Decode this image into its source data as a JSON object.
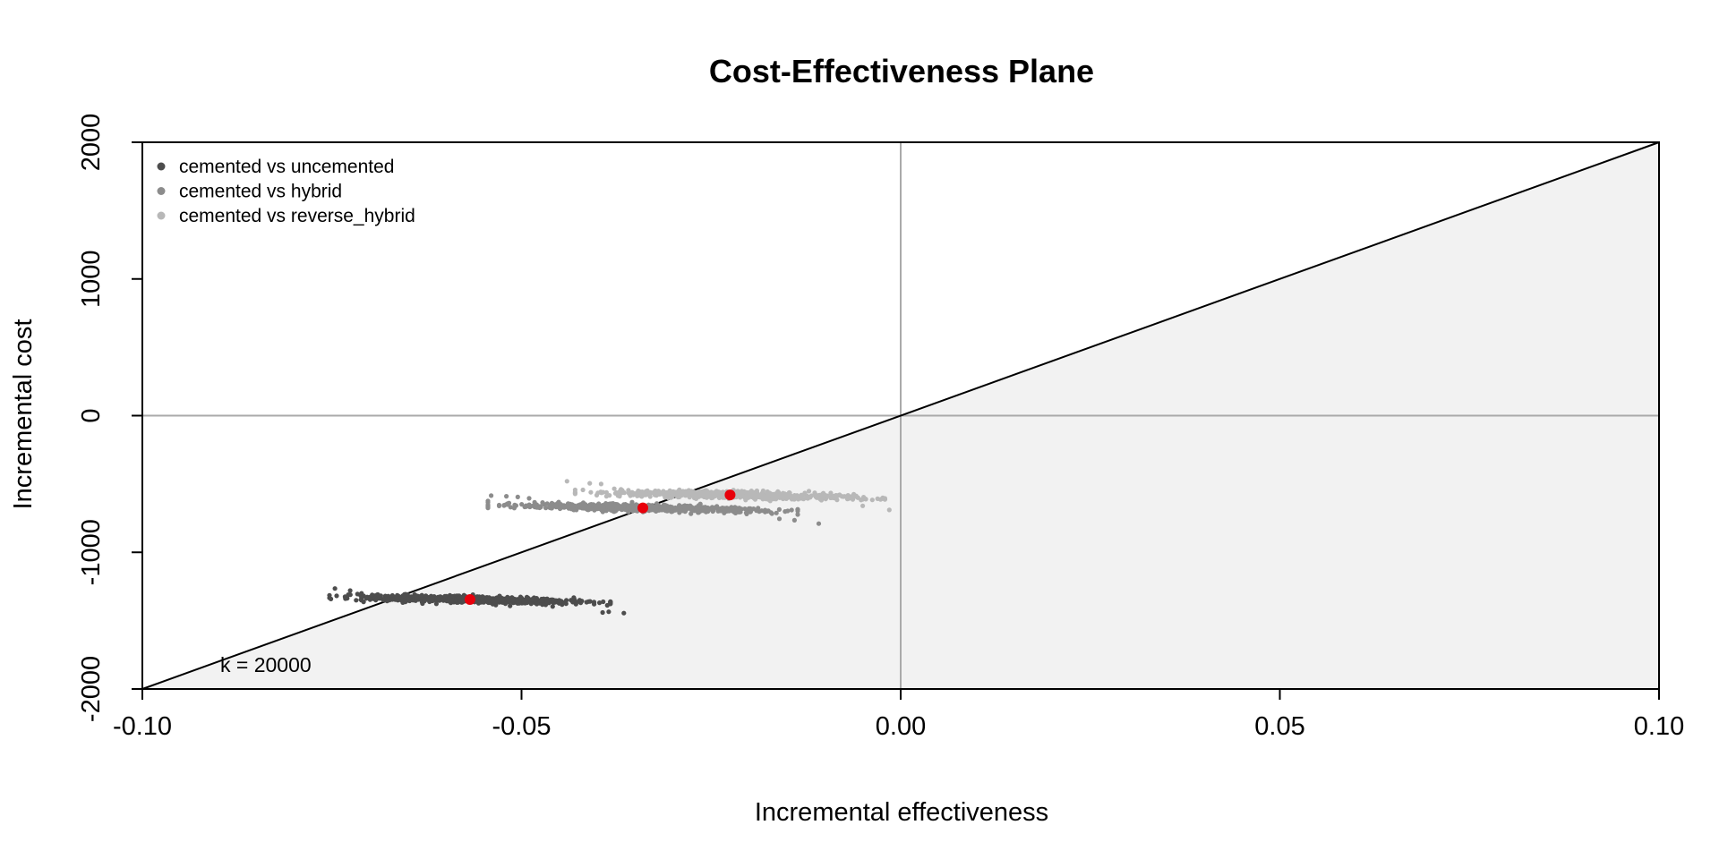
{
  "chart_data": {
    "type": "scatter",
    "title": "Cost-Effectiveness Plane",
    "xlabel": "Incremental effectiveness",
    "ylabel": "Incremental cost",
    "xlim": [
      -0.1,
      0.1
    ],
    "ylim": [
      -2000,
      2000
    ],
    "xticks": [
      -0.1,
      -0.05,
      0.0,
      0.05,
      0.1
    ],
    "xtick_labels": [
      "-0.10",
      "-0.05",
      "0.00",
      "0.05",
      "0.10"
    ],
    "yticks": [
      -2000,
      -1000,
      0,
      1000,
      2000
    ],
    "ytick_labels": [
      "-2000",
      "-1000",
      "0",
      "1000",
      "2000"
    ],
    "grid": false,
    "legend_position": "top-left",
    "wtp_label": "k = 20000",
    "wtp_value": 20000,
    "colors": {
      "region_fill": "#f2f2f2",
      "reference_lines": "#aaaaaa",
      "mean_point": "#e8000b"
    },
    "series": [
      {
        "name": "cemented vs uncemented",
        "color": "#4d4d4d",
        "mean": [
          -0.0568,
          -1345
        ],
        "slope": -1200,
        "x_range": [
          -0.075,
          -0.036
        ],
        "outliers": [
          [
            -0.0746,
            -1265
          ],
          [
            -0.0726,
            -1280
          ],
          [
            -0.0711,
            -1300
          ],
          [
            -0.0385,
            -1435
          ],
          [
            -0.0393,
            -1440
          ],
          [
            -0.0365,
            -1445
          ]
        ]
      },
      {
        "name": "cemented vs hybrid",
        "color": "#8c8c8c",
        "mean": [
          -0.034,
          -675
        ],
        "slope": -1150,
        "x_range": [
          -0.054,
          -0.011
        ],
        "outliers": [
          [
            -0.054,
            -585
          ],
          [
            -0.052,
            -590
          ],
          [
            -0.0505,
            -595
          ],
          [
            -0.049,
            -605
          ],
          [
            -0.016,
            -755
          ],
          [
            -0.014,
            -765
          ],
          [
            -0.0108,
            -790
          ]
        ]
      },
      {
        "name": "cemented vs reverse_hybrid",
        "color": "#b8b8b8",
        "mean": [
          -0.0225,
          -580
        ],
        "slope": -1180,
        "x_range": [
          -0.045,
          -0.002
        ],
        "outliers": [
          [
            -0.044,
            -480
          ],
          [
            -0.041,
            -495
          ],
          [
            -0.0395,
            -500
          ],
          [
            -0.005,
            -660
          ],
          [
            -0.0015,
            -690
          ]
        ]
      }
    ]
  }
}
